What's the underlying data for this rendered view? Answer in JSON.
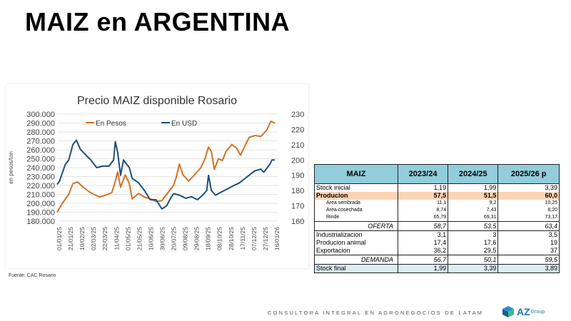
{
  "slide_title": "MAIZ en ARGENTINA",
  "source": "Fuente: CAC Rosario",
  "footer": "CONSULTORA INTEGRAL EN AGRONEGOCIOS DE LATAM",
  "logo": {
    "text": "AZ",
    "sub": "Group"
  },
  "colors": {
    "pesos": "#d4701f",
    "usd": "#1f4e79",
    "table_header": "#92cddc",
    "production_row": "#fbd4b4",
    "stock_final_row": "#daeef3"
  },
  "chart_data": {
    "type": "line",
    "title": "Precio MAIZ disponible Rosario",
    "ylabel": "en pesos/ton",
    "ylim": [
      180000,
      300000
    ],
    "y_ticks": [
      "300.000",
      "290.000",
      "280.000",
      "270.000",
      "260.000",
      "250.000",
      "240.000",
      "230.000",
      "220.000",
      "210.000",
      "200.000",
      "190.000",
      "180.000"
    ],
    "y2lim": [
      160,
      230
    ],
    "y2_ticks": [
      "230",
      "220",
      "210",
      "200",
      "190",
      "180",
      "170",
      "160"
    ],
    "x_ticks": [
      "01/01/25",
      "21/01/25",
      "10/02/25",
      "02/03/25",
      "22/03/25",
      "11/04/25",
      "01/05/25",
      "21/05/25",
      "10/06/25",
      "30/06/25",
      "20/07/25",
      "09/08/25",
      "29/08/25",
      "18/09/25",
      "08/10/25",
      "28/10/25",
      "17/11/25",
      "07/12/25",
      "27/12/25",
      "16/01/26"
    ],
    "grid": true,
    "legend": "top",
    "series": [
      {
        "name": "En Pesos",
        "axis": "left",
        "points": [
          [
            "2025-01-01",
            190000
          ],
          [
            "2025-01-10",
            200000
          ],
          [
            "2025-01-21",
            210000
          ],
          [
            "2025-01-28",
            222000
          ],
          [
            "2025-02-05",
            224000
          ],
          [
            "2025-02-15",
            218000
          ],
          [
            "2025-02-25",
            213000
          ],
          [
            "2025-03-05",
            210000
          ],
          [
            "2025-03-15",
            207000
          ],
          [
            "2025-03-25",
            209000
          ],
          [
            "2025-04-05",
            212000
          ],
          [
            "2025-04-11",
            225000
          ],
          [
            "2025-04-15",
            235000
          ],
          [
            "2025-04-20",
            218000
          ],
          [
            "2025-04-28",
            232000
          ],
          [
            "2025-05-05",
            222000
          ],
          [
            "2025-05-10",
            205000
          ],
          [
            "2025-05-21",
            211000
          ],
          [
            "2025-05-31",
            207000
          ],
          [
            "2025-06-10",
            205000
          ],
          [
            "2025-06-20",
            202000
          ],
          [
            "2025-06-30",
            203000
          ],
          [
            "2025-07-08",
            210000
          ],
          [
            "2025-07-20",
            220000
          ],
          [
            "2025-07-25",
            230000
          ],
          [
            "2025-07-30",
            244000
          ],
          [
            "2025-08-05",
            232000
          ],
          [
            "2025-08-15",
            225000
          ],
          [
            "2025-08-25",
            232000
          ],
          [
            "2025-09-05",
            240000
          ],
          [
            "2025-09-12",
            250000
          ],
          [
            "2025-09-18",
            263000
          ],
          [
            "2025-09-23",
            258000
          ],
          [
            "2025-09-28",
            238000
          ],
          [
            "2025-10-05",
            250000
          ],
          [
            "2025-10-12",
            248000
          ],
          [
            "2025-10-18",
            258000
          ],
          [
            "2025-10-28",
            266000
          ],
          [
            "2025-11-05",
            262000
          ],
          [
            "2025-11-12",
            254000
          ],
          [
            "2025-11-20",
            265000
          ],
          [
            "2025-11-27",
            274000
          ],
          [
            "2025-12-07",
            276000
          ],
          [
            "2025-12-17",
            275000
          ],
          [
            "2025-12-27",
            282000
          ],
          [
            "2026-01-03",
            292000
          ],
          [
            "2026-01-10",
            290000
          ]
        ]
      },
      {
        "name": "En USD",
        "axis": "right",
        "points": [
          [
            "2025-01-01",
            184
          ],
          [
            "2025-01-05",
            186
          ],
          [
            "2025-01-15",
            197
          ],
          [
            "2025-01-21",
            200
          ],
          [
            "2025-01-28",
            210
          ],
          [
            "2025-02-03",
            213
          ],
          [
            "2025-02-10",
            207
          ],
          [
            "2025-02-20",
            203
          ],
          [
            "2025-02-28",
            200
          ],
          [
            "2025-03-10",
            195
          ],
          [
            "2025-03-20",
            196
          ],
          [
            "2025-03-31",
            196
          ],
          [
            "2025-04-08",
            200
          ],
          [
            "2025-04-11",
            212
          ],
          [
            "2025-04-15",
            205
          ],
          [
            "2025-04-20",
            190
          ],
          [
            "2025-04-25",
            200
          ],
          [
            "2025-05-05",
            195
          ],
          [
            "2025-05-10",
            188
          ],
          [
            "2025-05-21",
            185
          ],
          [
            "2025-05-31",
            180
          ],
          [
            "2025-06-10",
            174
          ],
          [
            "2025-06-20",
            174
          ],
          [
            "2025-06-30",
            168
          ],
          [
            "2025-07-08",
            170
          ],
          [
            "2025-07-15",
            175
          ],
          [
            "2025-07-20",
            178
          ],
          [
            "2025-07-30",
            177
          ],
          [
            "2025-08-10",
            175
          ],
          [
            "2025-08-20",
            176
          ],
          [
            "2025-08-30",
            174
          ],
          [
            "2025-09-08",
            177
          ],
          [
            "2025-09-15",
            180
          ],
          [
            "2025-09-18",
            190
          ],
          [
            "2025-09-23",
            180
          ],
          [
            "2025-09-30",
            177
          ],
          [
            "2025-10-10",
            179
          ],
          [
            "2025-10-20",
            181
          ],
          [
            "2025-10-30",
            183
          ],
          [
            "2025-11-10",
            185
          ],
          [
            "2025-11-20",
            188
          ],
          [
            "2025-11-30",
            191
          ],
          [
            "2025-12-07",
            193
          ],
          [
            "2025-12-17",
            194
          ],
          [
            "2025-12-22",
            192
          ],
          [
            "2026-01-01",
            197
          ],
          [
            "2026-01-05",
            200
          ],
          [
            "2026-01-10",
            200
          ]
        ]
      }
    ]
  },
  "table": {
    "headers": [
      "MAIZ",
      "2023/24",
      "2024/25",
      "2025/26 p"
    ],
    "rows": [
      {
        "type": "normal",
        "cells": [
          "Stock inicial",
          "1,19",
          "1,99",
          "3,39"
        ]
      },
      {
        "type": "prod",
        "cells": [
          "Producion",
          "57,5",
          "51,5",
          "60,0"
        ]
      },
      {
        "type": "sub",
        "cells": [
          "Area sembrada",
          "11,1",
          "9,2",
          "10,25"
        ]
      },
      {
        "type": "sub",
        "cells": [
          "Area cosechada",
          "8,74",
          "7,43",
          "8,20"
        ]
      },
      {
        "type": "sub",
        "cells": [
          "Rinde",
          "65,79",
          "69,31",
          "73,17"
        ]
      },
      {
        "type": "tot",
        "cells": [
          "OFERTA",
          "58,7",
          "53,5",
          "63,4"
        ]
      },
      {
        "type": "normal",
        "cells": [
          "Industrializacion",
          "3,1",
          "3",
          "3,5"
        ]
      },
      {
        "type": "normal",
        "cells": [
          "Producion animal",
          "17,4",
          "17,6",
          "19"
        ]
      },
      {
        "type": "normal",
        "cells": [
          "Exportacion",
          "36,2",
          "29,5",
          "37"
        ]
      },
      {
        "type": "tot",
        "cells": [
          "DEMANDA",
          "56,7",
          "50,1",
          "59,5"
        ]
      },
      {
        "type": "fin",
        "cells": [
          "Stock final",
          "1,99",
          "3,39",
          "3,89"
        ]
      }
    ]
  }
}
